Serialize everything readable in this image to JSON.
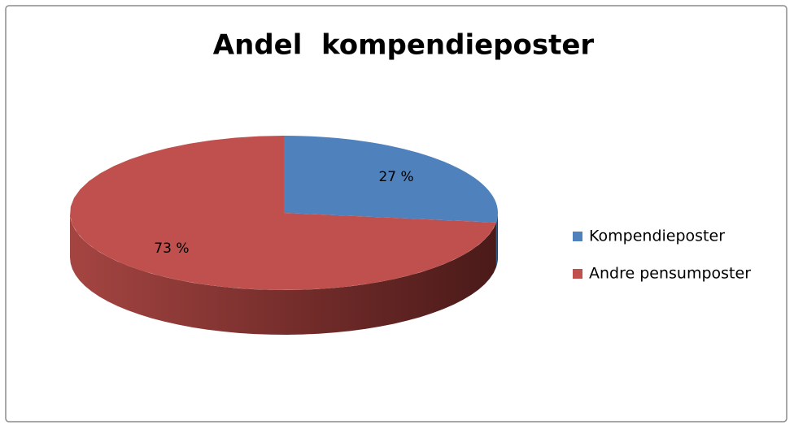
{
  "chart_data": {
    "type": "pie",
    "title": "Andel  kompendieposter",
    "categories": [
      "Kompendieposter",
      "Andre pensumposter"
    ],
    "values": [
      27,
      73
    ],
    "value_labels": [
      "27 %",
      "73 %"
    ],
    "colors": [
      "#4f81bd",
      "#c0504d"
    ],
    "legend": "right"
  }
}
